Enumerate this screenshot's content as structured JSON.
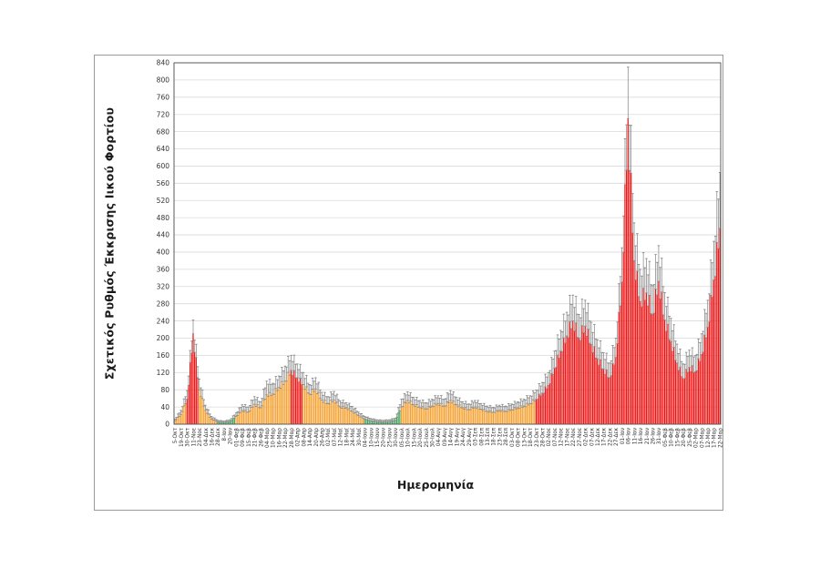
{
  "chart_data": {
    "type": "bar",
    "title": "",
    "ylabel": "Σχετικός Ρυθμός Έκκρισης Ιικού Φορτίου",
    "xlabel": "Ημερομηνία",
    "ylim": [
      0,
      840
    ],
    "y_tick_step": 40,
    "grid": true,
    "legend": "none",
    "bars_per_tick": 4,
    "colors": {
      "green": "#3fa45b",
      "orange": "#f6a233",
      "red": "#ee1515",
      "error": "#8a8a8a",
      "gridline": "#d9d9d9",
      "axis": "#595959"
    },
    "points": [
      {
        "label": "5-Οκτ",
        "value": 8,
        "error_top": 12,
        "color": "orange"
      },
      {
        "label": "19-Οκτ",
        "value": 22,
        "error_top": 32,
        "color": "orange"
      },
      {
        "label": "30-Οκτ",
        "value": 58,
        "error_top": 78,
        "color": "red"
      },
      {
        "label": "11-Νοε",
        "value": 210,
        "error_top": 242,
        "color": "red"
      },
      {
        "label": "23-Νοε",
        "value": 80,
        "error_top": 105,
        "color": "orange"
      },
      {
        "label": "04-Δεκ",
        "value": 32,
        "error_top": 44,
        "color": "orange"
      },
      {
        "label": "16-Δεκ",
        "value": 12,
        "error_top": 18,
        "color": "orange"
      },
      {
        "label": "28-Δεκ",
        "value": 5,
        "error_top": 9,
        "color": "green"
      },
      {
        "label": "8-Ιαν",
        "value": 4,
        "error_top": 7,
        "color": "green"
      },
      {
        "label": "20-Ιαν",
        "value": 6,
        "error_top": 10,
        "color": "green"
      },
      {
        "label": "01-Φεβ",
        "value": 18,
        "error_top": 26,
        "color": "orange"
      },
      {
        "label": "09-Φεβ",
        "value": 32,
        "error_top": 45,
        "color": "orange"
      },
      {
        "label": "15-Φεβ",
        "value": 28,
        "error_top": 40,
        "color": "orange"
      },
      {
        "label": "21-Φεβ",
        "value": 46,
        "error_top": 64,
        "color": "orange"
      },
      {
        "label": "26-Φεβ",
        "value": 38,
        "error_top": 52,
        "color": "orange"
      },
      {
        "label": "04-Μαρ",
        "value": 68,
        "error_top": 100,
        "color": "orange"
      },
      {
        "label": "10-Μαρ",
        "value": 70,
        "error_top": 95,
        "color": "orange"
      },
      {
        "label": "16-Μαρ",
        "value": 85,
        "error_top": 112,
        "color": "orange"
      },
      {
        "label": "22-Μαρ",
        "value": 100,
        "error_top": 135,
        "color": "orange"
      },
      {
        "label": "28-Μαρ",
        "value": 125,
        "error_top": 160,
        "color": "red"
      },
      {
        "label": "02-Απρ",
        "value": 108,
        "error_top": 140,
        "color": "red"
      },
      {
        "label": "08-Απρ",
        "value": 92,
        "error_top": 120,
        "color": "orange"
      },
      {
        "label": "14-Απρ",
        "value": 70,
        "error_top": 92,
        "color": "orange"
      },
      {
        "label": "20-Απρ",
        "value": 82,
        "error_top": 108,
        "color": "orange"
      },
      {
        "label": "26-Απρ",
        "value": 56,
        "error_top": 74,
        "color": "orange"
      },
      {
        "label": "02-Μαϊ",
        "value": 48,
        "error_top": 64,
        "color": "orange"
      },
      {
        "label": "07-Μαϊ",
        "value": 56,
        "error_top": 76,
        "color": "orange"
      },
      {
        "label": "12-Μαϊ",
        "value": 40,
        "error_top": 54,
        "color": "orange"
      },
      {
        "label": "18-Μαϊ",
        "value": 38,
        "error_top": 50,
        "color": "orange"
      },
      {
        "label": "24-Μαϊ",
        "value": 30,
        "error_top": 41,
        "color": "orange"
      },
      {
        "label": "30-Μαϊ",
        "value": 20,
        "error_top": 28,
        "color": "orange"
      },
      {
        "label": "04-Ιουν",
        "value": 12,
        "error_top": 18,
        "color": "green"
      },
      {
        "label": "10-Ιουν",
        "value": 8,
        "error_top": 13,
        "color": "green"
      },
      {
        "label": "15-Ιουν",
        "value": 6,
        "error_top": 10,
        "color": "green"
      },
      {
        "label": "20-Ιουν",
        "value": 5,
        "error_top": 9,
        "color": "green"
      },
      {
        "label": "25-Ιουν",
        "value": 6,
        "error_top": 10,
        "color": "green"
      },
      {
        "label": "30-Ιουν",
        "value": 9,
        "error_top": 14,
        "color": "green"
      },
      {
        "label": "05-Ιουλ",
        "value": 40,
        "error_top": 58,
        "color": "orange"
      },
      {
        "label": "10-Ιουλ",
        "value": 55,
        "error_top": 75,
        "color": "orange"
      },
      {
        "label": "15-Ιουλ",
        "value": 45,
        "error_top": 62,
        "color": "orange"
      },
      {
        "label": "20-Ιουλ",
        "value": 40,
        "error_top": 55,
        "color": "orange"
      },
      {
        "label": "25-Ιουλ",
        "value": 36,
        "error_top": 50,
        "color": "orange"
      },
      {
        "label": "30-Ιουλ",
        "value": 42,
        "error_top": 58,
        "color": "orange"
      },
      {
        "label": "04-Αυγ",
        "value": 48,
        "error_top": 66,
        "color": "orange"
      },
      {
        "label": "09-Αυγ",
        "value": 42,
        "error_top": 58,
        "color": "orange"
      },
      {
        "label": "14-Αυγ",
        "value": 55,
        "error_top": 78,
        "color": "orange"
      },
      {
        "label": "19-Αυγ",
        "value": 45,
        "error_top": 62,
        "color": "orange"
      },
      {
        "label": "24-Αυγ",
        "value": 38,
        "error_top": 52,
        "color": "orange"
      },
      {
        "label": "29-Αυγ",
        "value": 34,
        "error_top": 47,
        "color": "orange"
      },
      {
        "label": "03-Σεπ",
        "value": 40,
        "error_top": 55,
        "color": "orange"
      },
      {
        "label": "08-Σεπ",
        "value": 35,
        "error_top": 48,
        "color": "orange"
      },
      {
        "label": "13-Σεπ",
        "value": 30,
        "error_top": 42,
        "color": "orange"
      },
      {
        "label": "18-Σεπ",
        "value": 28,
        "error_top": 39,
        "color": "orange"
      },
      {
        "label": "23-Σεπ",
        "value": 32,
        "error_top": 44,
        "color": "orange"
      },
      {
        "label": "28-Σεπ",
        "value": 30,
        "error_top": 42,
        "color": "orange"
      },
      {
        "label": "03-Οκτ",
        "value": 34,
        "error_top": 47,
        "color": "orange"
      },
      {
        "label": "08-Οκτ",
        "value": 38,
        "error_top": 52,
        "color": "orange"
      },
      {
        "label": "13-Οκτ",
        "value": 42,
        "error_top": 58,
        "color": "orange"
      },
      {
        "label": "18-Οκτ",
        "value": 48,
        "error_top": 66,
        "color": "orange"
      },
      {
        "label": "23-Οκτ",
        "value": 58,
        "error_top": 79,
        "color": "red"
      },
      {
        "label": "28-Οκτ",
        "value": 72,
        "error_top": 97,
        "color": "red"
      },
      {
        "label": "02-Νοε",
        "value": 90,
        "error_top": 120,
        "color": "red"
      },
      {
        "label": "07-Νοε",
        "value": 130,
        "error_top": 170,
        "color": "red"
      },
      {
        "label": "12-Νοε",
        "value": 170,
        "error_top": 218,
        "color": "red"
      },
      {
        "label": "17-Νοε",
        "value": 205,
        "error_top": 260,
        "color": "red"
      },
      {
        "label": "22-Νοε",
        "value": 240,
        "error_top": 300,
        "color": "red"
      },
      {
        "label": "27-Νοε",
        "value": 200,
        "error_top": 255,
        "color": "red"
      },
      {
        "label": "02-Δεκ",
        "value": 228,
        "error_top": 288,
        "color": "red"
      },
      {
        "label": "07-Δεκ",
        "value": 185,
        "error_top": 237,
        "color": "red"
      },
      {
        "label": "12-Δεκ",
        "value": 152,
        "error_top": 196,
        "color": "red"
      },
      {
        "label": "17-Δεκ",
        "value": 128,
        "error_top": 166,
        "color": "red"
      },
      {
        "label": "22-Δεκ",
        "value": 108,
        "error_top": 142,
        "color": "red"
      },
      {
        "label": "27-Δεκ",
        "value": 155,
        "error_top": 200,
        "color": "red"
      },
      {
        "label": "01-Ιαν",
        "value": 330,
        "error_top": 410,
        "color": "red"
      },
      {
        "label": "06-Ιαν",
        "value": 710,
        "error_top": 830,
        "color": "red"
      },
      {
        "label": "11-Ιαν",
        "value": 380,
        "error_top": 468,
        "color": "red"
      },
      {
        "label": "16-Ιαν",
        "value": 285,
        "error_top": 360,
        "color": "red"
      },
      {
        "label": "21-Ιαν",
        "value": 305,
        "error_top": 385,
        "color": "red"
      },
      {
        "label": "26-Ιαν",
        "value": 255,
        "error_top": 322,
        "color": "red"
      },
      {
        "label": "31-Ιαν",
        "value": 332,
        "error_top": 415,
        "color": "red"
      },
      {
        "label": "05-Φεβ",
        "value": 242,
        "error_top": 306,
        "color": "red"
      },
      {
        "label": "10-Φεβ",
        "value": 192,
        "error_top": 246,
        "color": "red"
      },
      {
        "label": "15-Φεβ",
        "value": 142,
        "error_top": 186,
        "color": "red"
      },
      {
        "label": "20-Φεβ",
        "value": 106,
        "error_top": 140,
        "color": "red"
      },
      {
        "label": "25-Φεβ",
        "value": 132,
        "error_top": 172,
        "color": "red"
      },
      {
        "label": "02-Μαρ",
        "value": 122,
        "error_top": 160,
        "color": "red"
      },
      {
        "label": "07-Μαρ",
        "value": 162,
        "error_top": 210,
        "color": "red"
      },
      {
        "label": "12-Μαρ",
        "value": 225,
        "error_top": 288,
        "color": "red"
      },
      {
        "label": "17-Μαρ",
        "value": 335,
        "error_top": 425,
        "color": "red"
      },
      {
        "label": "22-Μαρ",
        "value": 455,
        "error_top": 585,
        "color": "red"
      }
    ]
  }
}
